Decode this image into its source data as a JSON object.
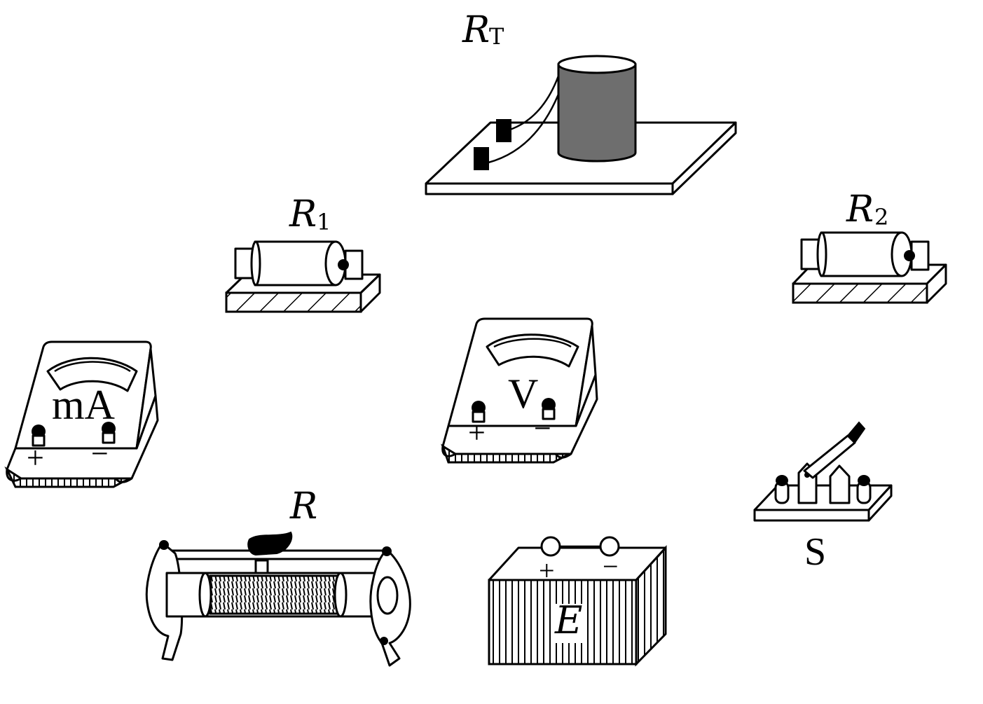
{
  "components": {
    "thermistor": {
      "label": "R",
      "subscript": "T"
    },
    "resistor_1": {
      "label": "R",
      "subscript": "1"
    },
    "resistor_2": {
      "label": "R",
      "subscript": "2"
    },
    "milliammeter": {
      "label": "mA",
      "plus": "+",
      "minus": "−"
    },
    "voltmeter": {
      "label": "V",
      "plus": "+",
      "minus": "−"
    },
    "rheostat": {
      "label": "R"
    },
    "battery": {
      "label": "E",
      "plus": "+",
      "minus": "−"
    },
    "switch": {
      "label": "S"
    }
  },
  "colors": {
    "thermistor_body": "#6e6e6e",
    "ink": "#000000",
    "paper": "#ffffff"
  }
}
